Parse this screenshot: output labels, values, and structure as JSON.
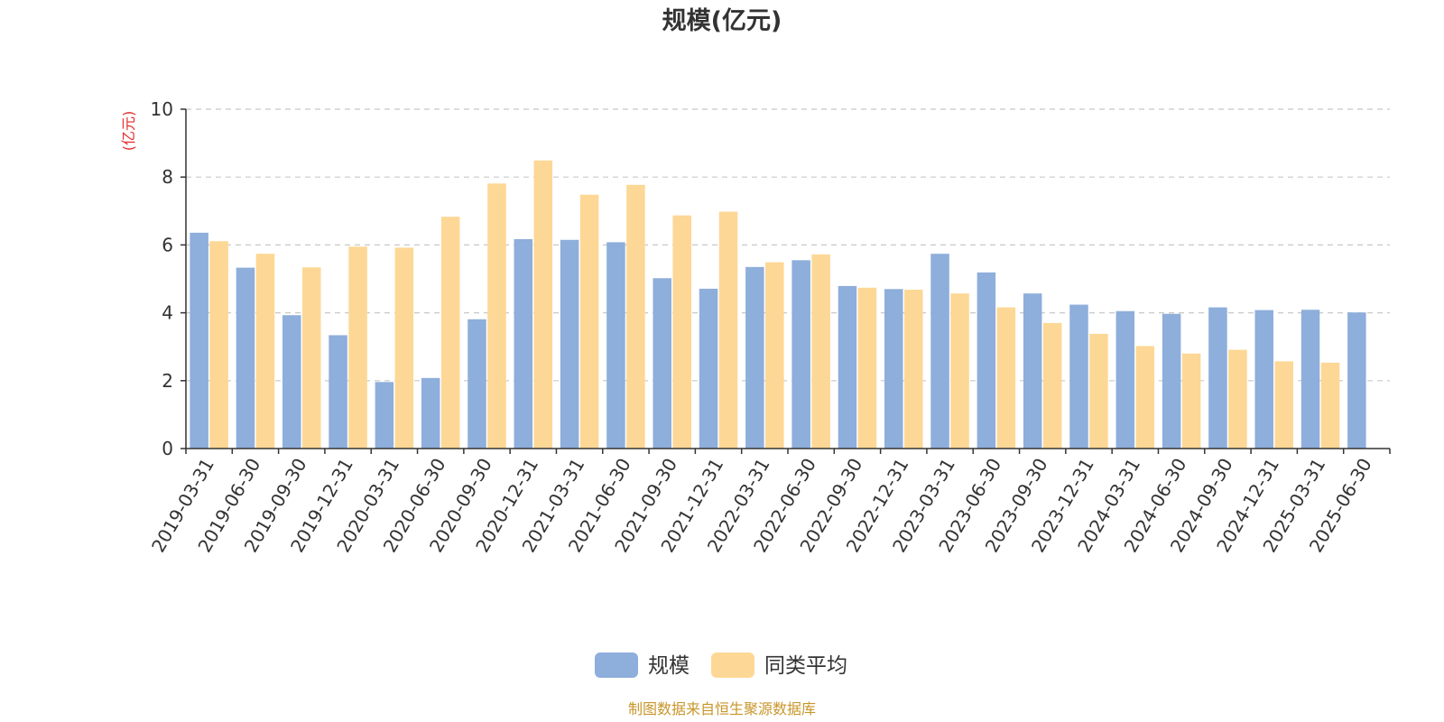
{
  "colors": {
    "series_scale": "#8EAEDB",
    "series_avg": "#FDD795",
    "unit_label": "#E52B2B",
    "source": "#C8962A",
    "grid": "#C8C8C8",
    "axis": "#333333"
  },
  "chart_data": {
    "type": "bar",
    "title": "规模(亿元)",
    "ylabel": "(亿元)",
    "xlabel": "",
    "ylim": [
      0,
      10
    ],
    "yticks": [
      0,
      2,
      4,
      6,
      8,
      10
    ],
    "grid": true,
    "legend_position": "bottom",
    "categories": [
      "2019-03-31",
      "2019-06-30",
      "2019-09-30",
      "2019-12-31",
      "2020-03-31",
      "2020-06-30",
      "2020-09-30",
      "2020-12-31",
      "2021-03-31",
      "2021-06-30",
      "2021-09-30",
      "2021-12-31",
      "2022-03-31",
      "2022-06-30",
      "2022-09-30",
      "2022-12-31",
      "2023-03-31",
      "2023-06-30",
      "2023-09-30",
      "2023-12-31",
      "2024-03-31",
      "2024-06-30",
      "2024-09-30",
      "2024-12-31",
      "2025-03-31",
      "2025-06-30"
    ],
    "series": [
      {
        "name": "规模",
        "values": [
          6.36,
          5.33,
          3.93,
          3.34,
          1.96,
          2.08,
          3.81,
          6.17,
          6.15,
          6.08,
          5.02,
          4.71,
          5.35,
          5.55,
          4.79,
          4.7,
          5.74,
          5.19,
          4.57,
          4.24,
          4.05,
          3.97,
          4.16,
          4.08,
          4.09,
          4.01
        ]
      },
      {
        "name": "同类平均",
        "values": [
          6.11,
          5.74,
          5.34,
          5.95,
          5.92,
          6.83,
          7.81,
          8.49,
          7.48,
          7.77,
          6.87,
          6.98,
          5.49,
          5.72,
          4.74,
          4.68,
          4.57,
          4.16,
          3.7,
          3.38,
          3.02,
          2.8,
          2.91,
          2.57,
          2.53,
          null
        ]
      }
    ]
  },
  "source_text": "制图数据来自恒生聚源数据库"
}
